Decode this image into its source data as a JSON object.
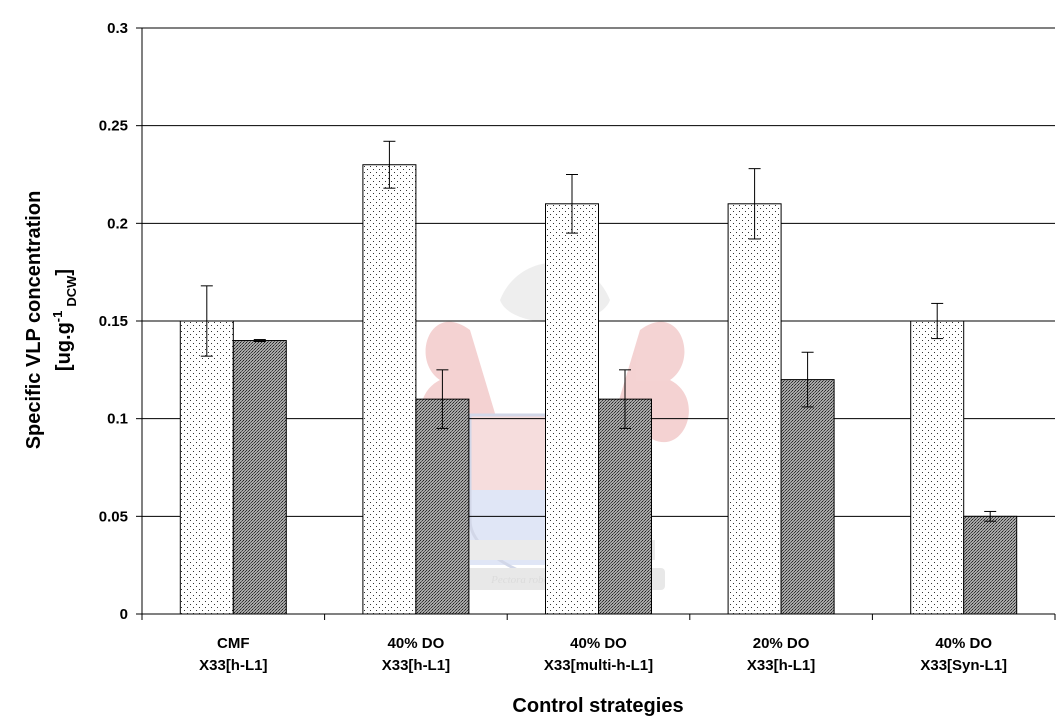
{
  "chart_data": {
    "type": "bar",
    "title": "",
    "xlabel": "Control strategies",
    "ylabel": {
      "line1": "Specific VLP concentration",
      "line2_main": "[ug.g",
      "line2_sup": "-1",
      "line2_sub": "DCW",
      "line2_end": "]"
    },
    "ylim": [
      0,
      0.3
    ],
    "yticks": [
      "0",
      "0.05",
      "0.1",
      "0.15",
      "0.2",
      "0.25",
      "0.3"
    ],
    "grid": true,
    "legend": "none",
    "categories": [
      {
        "line1": "CMF",
        "line2": "X33[h-L1]"
      },
      {
        "line1": "40% DO",
        "line2": "X33[h-L1]"
      },
      {
        "line1": "40% DO",
        "line2": "X33[multi-h-L1]"
      },
      {
        "line1": "20% DO",
        "line2": "X33[h-L1]"
      },
      {
        "line1": "40% DO",
        "line2": "X33[Syn-L1]"
      }
    ],
    "series": [
      {
        "pattern": "dotted",
        "values": [
          0.15,
          0.23,
          0.21,
          0.21,
          0.15
        ],
        "errors": [
          0.018,
          0.012,
          0.015,
          0.018,
          0.009
        ]
      },
      {
        "pattern": "crosshatch",
        "values": [
          0.14,
          0.11,
          0.11,
          0.12,
          0.05
        ],
        "errors": [
          0.0005,
          0.015,
          0.015,
          0.014,
          0.0025
        ]
      }
    ],
    "watermark_motto": "Pectora roborant cultus recti"
  }
}
